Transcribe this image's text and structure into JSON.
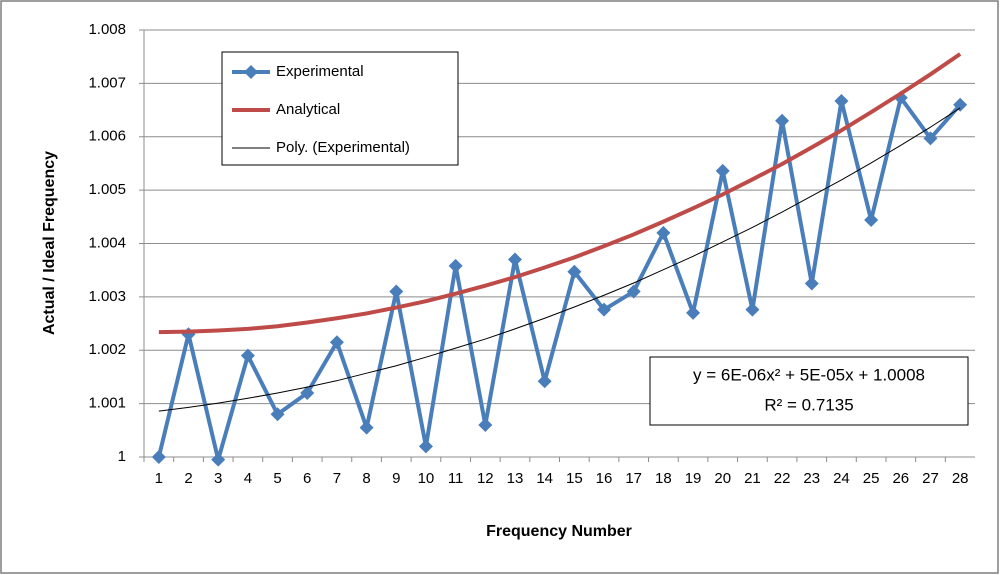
{
  "chart_data": {
    "type": "line",
    "y_label": "Actual / Ideal Frequency",
    "x_label": "Frequency Number",
    "categories": [
      "1",
      "2",
      "3",
      "4",
      "5",
      "6",
      "7",
      "8",
      "9",
      "10",
      "11",
      "12",
      "13",
      "14",
      "15",
      "16",
      "17",
      "18",
      "19",
      "20",
      "21",
      "22",
      "23",
      "24",
      "25",
      "26",
      "27",
      "28"
    ],
    "series": [
      {
        "name": "Experimental",
        "color": "#4a7ebb",
        "marker": "diamond",
        "values": [
          1.0,
          1.0023,
          0.99995,
          1.0019,
          1.0008,
          1.0012,
          1.00215,
          1.00055,
          1.0031,
          1.0002,
          1.00358,
          1.0006,
          1.0037,
          1.00142,
          1.00347,
          1.00276,
          1.0031,
          1.0042,
          1.0027,
          1.00536,
          1.00276,
          1.0063,
          1.00325,
          1.00667,
          1.00444,
          1.00673,
          1.00597,
          1.0066
        ]
      },
      {
        "name": "Analytical",
        "color": "#be4b48",
        "values": [
          1.00234,
          1.00235,
          1.00237,
          1.0024,
          1.00245,
          1.00252,
          1.0026,
          1.00269,
          1.0028,
          1.00292,
          1.00306,
          1.00321,
          1.00337,
          1.00355,
          1.00374,
          1.00395,
          1.00417,
          1.00441,
          1.00466,
          1.00492,
          1.0052,
          1.00549,
          1.0058,
          1.00612,
          1.00646,
          1.00681,
          1.00717,
          1.00755
        ]
      },
      {
        "name": "Poly. (Experimental)",
        "color": "#000000",
        "values": [
          1.00086,
          1.00093,
          1.00101,
          1.0011,
          1.0012,
          1.00131,
          1.00143,
          1.00157,
          1.00171,
          1.00187,
          1.00204,
          1.00221,
          1.0024,
          1.0026,
          1.00281,
          1.00303,
          1.00326,
          1.00351,
          1.00376,
          1.00403,
          1.0043,
          1.00459,
          1.00489,
          1.00519,
          1.00551,
          1.00584,
          1.00618,
          1.00654
        ]
      }
    ],
    "annotation": [
      "y = 6E-06x² + 5E-05x + 1.0008",
      "R² = 0.7135"
    ],
    "ylim": [
      1,
      1.008
    ],
    "yticks": [
      1,
      1.001,
      1.002,
      1.003,
      1.004,
      1.005,
      1.006,
      1.007,
      1.008
    ],
    "grid": true,
    "legend": "top-left"
  }
}
